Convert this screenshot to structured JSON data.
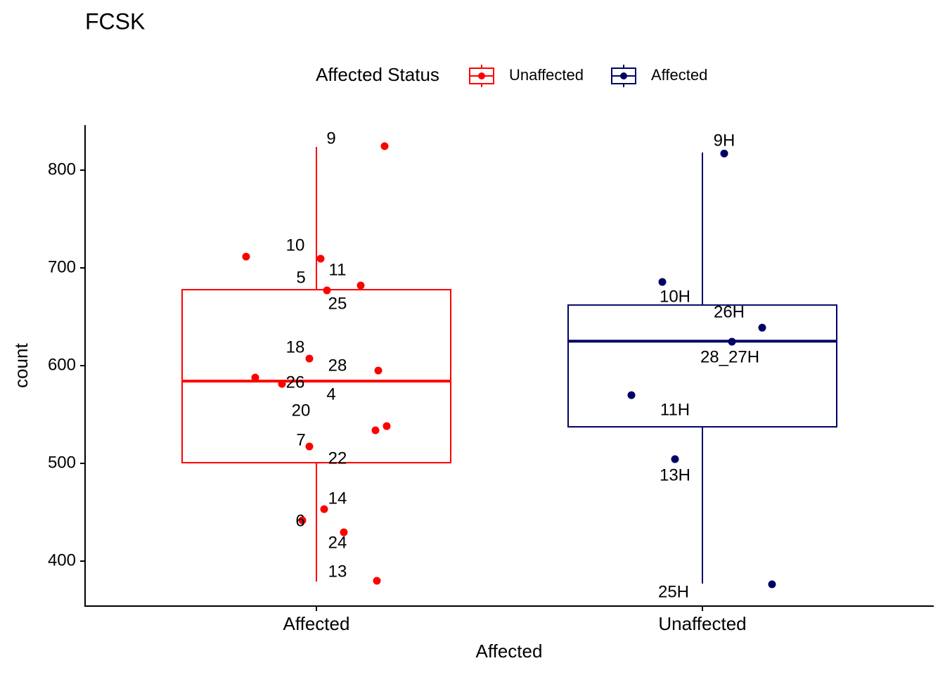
{
  "chart_data": {
    "type": "box",
    "title": "FCSK",
    "x_label": "Affected",
    "y_label": "count",
    "legend_title": "Affected Status",
    "categories": [
      "Affected",
      "Unaffected"
    ],
    "ylim": [
      354,
      846
    ],
    "yticks": [
      400,
      500,
      600,
      700,
      800
    ],
    "series": [
      {
        "name": "Unaffected",
        "color": "#ff0000",
        "whisker_low": 379,
        "q1": 500.7,
        "median": 584.2,
        "q3": 677.7,
        "whisker_high": 823.7,
        "point_labels": [
          "9",
          "10",
          "11",
          "5",
          "25",
          "18",
          "28",
          "26",
          "4",
          "20",
          "22",
          "7",
          "14",
          "6",
          "24",
          "13"
        ],
        "values": [
          824.5,
          711.5,
          709.4,
          682,
          677,
          607.2,
          595,
          587.8,
          581.3,
          538.1,
          533.8,
          517.3,
          453.2,
          441.7,
          429.5,
          379.9
        ]
      },
      {
        "name": "Affected",
        "color": "#000066",
        "whisker_low": 377,
        "q1": 537.4,
        "median": 625,
        "q3": 662,
        "whisker_high": 818,
        "point_labels": [
          "9H",
          "10H",
          "26H",
          "28_27H",
          "11H",
          "13H",
          "25H"
        ],
        "values": [
          817,
          685.6,
          638.8,
          624.5,
          569.8,
          504.3,
          376.3
        ]
      }
    ]
  }
}
